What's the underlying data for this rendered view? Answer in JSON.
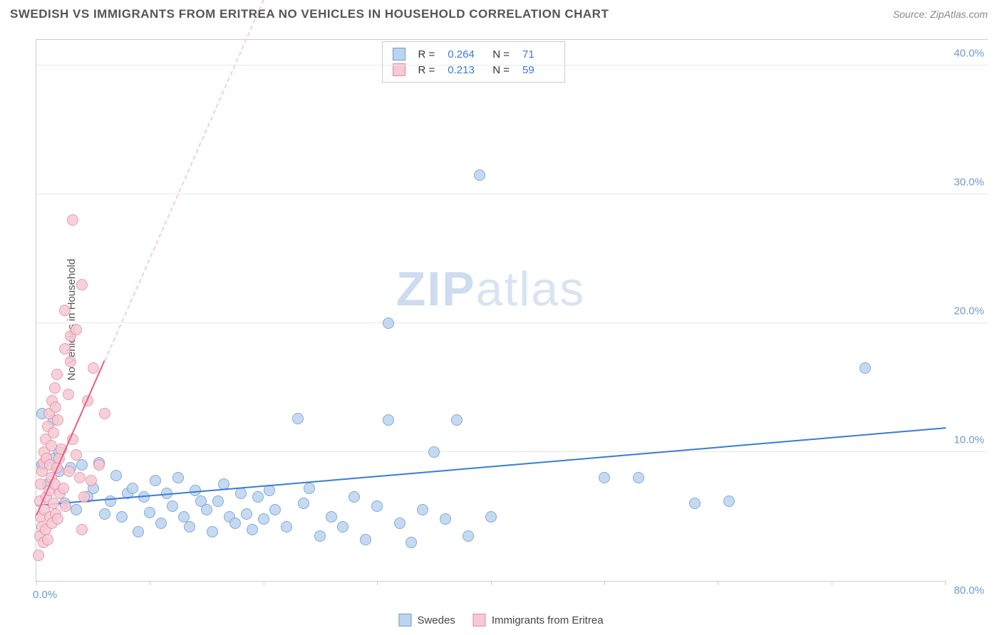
{
  "title": "SWEDISH VS IMMIGRANTS FROM ERITREA NO VEHICLES IN HOUSEHOLD CORRELATION CHART",
  "source_label": "Source: ",
  "source_name": "ZipAtlas.com",
  "y_axis_title": "No Vehicles in Household",
  "watermark_a": "ZIP",
  "watermark_b": "atlas",
  "chart": {
    "type": "scatter",
    "xlim": [
      0,
      80
    ],
    "ylim": [
      0,
      42
    ],
    "x_ticks": [
      0,
      10,
      20,
      30,
      40,
      50,
      60,
      70,
      80
    ],
    "x_tick_labels": {
      "0": "0.0%",
      "80": "80.0%"
    },
    "y_gridlines": [
      10,
      20,
      30,
      40
    ],
    "y_tick_labels": {
      "10": "10.0%",
      "20": "20.0%",
      "30": "30.0%",
      "40": "40.0%"
    },
    "background_color": "#ffffff",
    "grid_color": "#e8e8e8",
    "axis_color": "#cccccc",
    "tick_label_color": "#6b9bd1",
    "series": [
      {
        "key": "swedes",
        "label": "Swedes",
        "fill": "#bcd4ef",
        "stroke": "#6b9bd1",
        "marker_radius": 8,
        "trend_color": "#3a7bd5",
        "trend_width": 2,
        "trend_dash_color": "#c7ddf5",
        "trend_p1": [
          0,
          5.8
        ],
        "trend_p2": [
          80,
          11.8
        ],
        "R": "0.264",
        "N": "71",
        "points": [
          [
            0.5,
            13
          ],
          [
            0.5,
            9
          ],
          [
            1,
            7.5
          ],
          [
            1.5,
            12.5
          ],
          [
            1.5,
            9.5
          ],
          [
            2,
            8.5
          ],
          [
            2,
            10
          ],
          [
            2.5,
            6
          ],
          [
            3,
            8.8
          ],
          [
            3.5,
            5.5
          ],
          [
            4,
            9
          ],
          [
            4.5,
            6.5
          ],
          [
            5,
            7.2
          ],
          [
            5.5,
            9.2
          ],
          [
            6,
            5.2
          ],
          [
            6.5,
            6.2
          ],
          [
            7,
            8.2
          ],
          [
            7.5,
            5
          ],
          [
            8,
            6.8
          ],
          [
            8.5,
            7.2
          ],
          [
            9,
            3.8
          ],
          [
            9.5,
            6.5
          ],
          [
            10,
            5.3
          ],
          [
            10.5,
            7.8
          ],
          [
            11,
            4.5
          ],
          [
            11.5,
            6.8
          ],
          [
            12,
            5.8
          ],
          [
            12.5,
            8
          ],
          [
            13,
            5
          ],
          [
            13.5,
            4.2
          ],
          [
            14,
            7
          ],
          [
            14.5,
            6.2
          ],
          [
            15,
            5.5
          ],
          [
            15.5,
            3.8
          ],
          [
            16,
            6.2
          ],
          [
            16.5,
            7.5
          ],
          [
            17,
            5
          ],
          [
            17.5,
            4.5
          ],
          [
            18,
            6.8
          ],
          [
            18.5,
            5.2
          ],
          [
            19,
            4
          ],
          [
            19.5,
            6.5
          ],
          [
            20,
            4.8
          ],
          [
            20.5,
            7
          ],
          [
            21,
            5.5
          ],
          [
            22,
            4.2
          ],
          [
            23,
            12.6
          ],
          [
            23.5,
            6
          ],
          [
            24,
            7.2
          ],
          [
            25,
            3.5
          ],
          [
            26,
            5
          ],
          [
            27,
            4.2
          ],
          [
            28,
            6.5
          ],
          [
            29,
            3.2
          ],
          [
            30,
            5.8
          ],
          [
            31,
            12.5
          ],
          [
            31,
            20
          ],
          [
            32,
            4.5
          ],
          [
            33,
            3
          ],
          [
            34,
            5.5
          ],
          [
            35,
            10
          ],
          [
            36,
            4.8
          ],
          [
            37,
            12.5
          ],
          [
            38,
            3.5
          ],
          [
            39,
            31.5
          ],
          [
            40,
            5
          ],
          [
            50,
            8
          ],
          [
            58,
            6
          ],
          [
            61,
            6.2
          ],
          [
            73,
            16.5
          ],
          [
            53,
            8
          ]
        ]
      },
      {
        "key": "eritrea",
        "label": "Immigrants from Eritrea",
        "fill": "#f6c9d4",
        "stroke": "#e28aa0",
        "marker_radius": 8,
        "trend_color": "#e85d84",
        "trend_width": 2,
        "trend_dash_color": "#f3cdd7",
        "trend_p1": [
          0,
          5
        ],
        "trend_p2": [
          6,
          17
        ],
        "trend_dash_p1": [
          6,
          17
        ],
        "trend_dash_p2": [
          22,
          49
        ],
        "R": "0.213",
        "N": "59",
        "points": [
          [
            0.2,
            2
          ],
          [
            0.3,
            3.5
          ],
          [
            0.4,
            5
          ],
          [
            0.3,
            6.2
          ],
          [
            0.5,
            4.2
          ],
          [
            0.4,
            7.5
          ],
          [
            0.6,
            3
          ],
          [
            0.5,
            8.5
          ],
          [
            0.7,
            5.5
          ],
          [
            0.6,
            9.2
          ],
          [
            0.8,
            4
          ],
          [
            0.7,
            10
          ],
          [
            0.9,
            6.5
          ],
          [
            0.8,
            11
          ],
          [
            1.0,
            3.2
          ],
          [
            0.9,
            9.5
          ],
          [
            1.1,
            7
          ],
          [
            1.0,
            12
          ],
          [
            1.2,
            5
          ],
          [
            1.1,
            13
          ],
          [
            1.3,
            8
          ],
          [
            1.2,
            9
          ],
          [
            1.4,
            4.5
          ],
          [
            1.3,
            10.5
          ],
          [
            1.5,
            6
          ],
          [
            1.4,
            14
          ],
          [
            1.6,
            7.5
          ],
          [
            1.5,
            11.5
          ],
          [
            1.7,
            5.2
          ],
          [
            1.6,
            15
          ],
          [
            1.8,
            8.8
          ],
          [
            1.7,
            13.5
          ],
          [
            1.9,
            4.8
          ],
          [
            1.8,
            16
          ],
          [
            2.0,
            9.5
          ],
          [
            1.9,
            12.5
          ],
          [
            2.1,
            6.8
          ],
          [
            2.5,
            18
          ],
          [
            2.2,
            10.2
          ],
          [
            3,
            19
          ],
          [
            2.4,
            7.2
          ],
          [
            2.8,
            14.5
          ],
          [
            2.6,
            5.8
          ],
          [
            3.5,
            19.5
          ],
          [
            2.9,
            8.5
          ],
          [
            2.5,
            21
          ],
          [
            3.2,
            11
          ],
          [
            3,
            17
          ],
          [
            3.5,
            9.8
          ],
          [
            4,
            23
          ],
          [
            3.8,
            8
          ],
          [
            3.2,
            28
          ],
          [
            4.2,
            6.5
          ],
          [
            4.5,
            14
          ],
          [
            4.8,
            7.8
          ],
          [
            5,
            16.5
          ],
          [
            5.5,
            9
          ],
          [
            6,
            13
          ],
          [
            4,
            4
          ]
        ]
      }
    ]
  },
  "stats_box": {
    "R_label": "R =",
    "N_label": "N ="
  }
}
